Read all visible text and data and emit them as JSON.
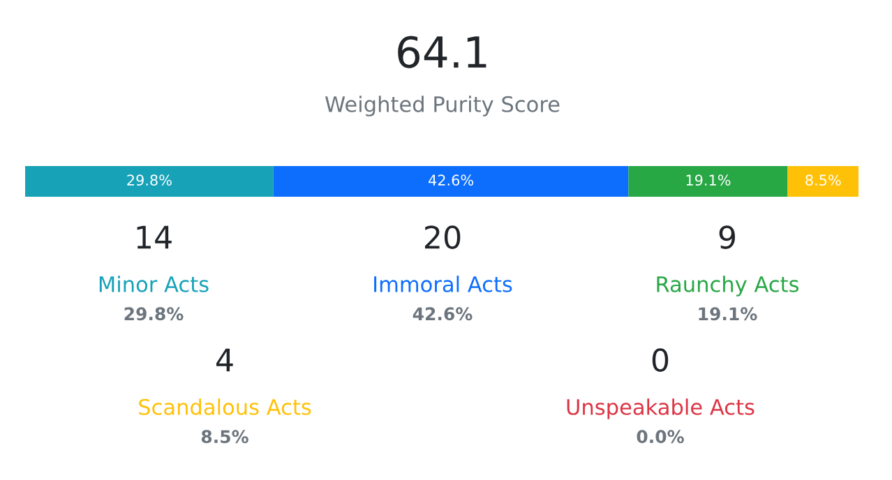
{
  "chart_data": {
    "type": "bar",
    "orientation": "horizontal",
    "stacked": true,
    "title": "64.1",
    "subtitle": "Weighted Purity Score",
    "categories": [
      null
    ],
    "tick_labels": false,
    "series": [
      {
        "name": "Minor Acts",
        "color": "#17a2b8",
        "values": [
          29.8
        ],
        "value_labels": [
          "29.8%"
        ]
      },
      {
        "name": "Immoral Acts",
        "color": "#0d6efd",
        "values": [
          42.6
        ],
        "value_labels": [
          "42.6%"
        ]
      },
      {
        "name": "Raunchy Acts",
        "color": "#28a745",
        "values": [
          19.1
        ],
        "value_labels": [
          "19.1%"
        ]
      },
      {
        "name": "Scandalous Acts",
        "color": "#ffc107",
        "values": [
          8.5
        ],
        "value_labels": [
          "8.5%"
        ]
      },
      {
        "name": "Unspeakable Acts",
        "color": "#dc3545",
        "values": [
          0.0
        ],
        "value_labels": [
          null
        ]
      }
    ],
    "annotations": [
      "14",
      "29.8%",
      "20",
      "42.6%",
      "9",
      "19.1%",
      "4",
      "8.5%",
      "0",
      "0.0%"
    ]
  }
}
